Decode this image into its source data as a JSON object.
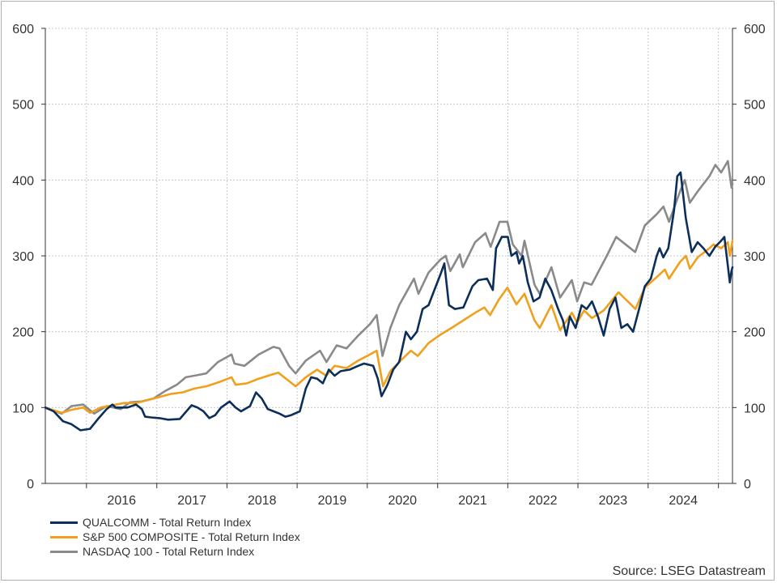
{
  "chart_data": {
    "type": "line",
    "x_axis": {
      "type": "date",
      "range": [
        "2015-06-01",
        "2025-03-15"
      ],
      "tick_labels": [
        "2016",
        "2017",
        "2018",
        "2019",
        "2020",
        "2021",
        "2022",
        "2023",
        "2024"
      ],
      "label_dates": [
        "2016-01-01",
        "2017-01-01",
        "2018-01-01",
        "2019-01-01",
        "2020-01-01",
        "2021-01-01",
        "2022-01-01",
        "2023-01-01",
        "2024-01-01"
      ]
    },
    "y_axis": {
      "range": [
        0,
        600
      ],
      "ticks": [
        "0",
        "100",
        "200",
        "300",
        "400",
        "500",
        "600"
      ],
      "tick_values": [
        0,
        100,
        200,
        300,
        400,
        500,
        600
      ],
      "mirrored_right": true
    },
    "grid": true,
    "legend_placement": "bottom-left",
    "series": [
      {
        "name": "QUALCOMM - Total Return Index",
        "color": "#0b2e5a",
        "points": [
          [
            "2015-06-01",
            100
          ],
          [
            "2015-07-15",
            95
          ],
          [
            "2015-09-01",
            82
          ],
          [
            "2015-10-15",
            78
          ],
          [
            "2015-12-01",
            70
          ],
          [
            "2016-01-20",
            72
          ],
          [
            "2016-03-01",
            85
          ],
          [
            "2016-04-15",
            98
          ],
          [
            "2016-05-15",
            104
          ],
          [
            "2016-06-01",
            100
          ],
          [
            "2016-08-01",
            100
          ],
          [
            "2016-09-15",
            104
          ],
          [
            "2016-10-15",
            98
          ],
          [
            "2016-11-01",
            88
          ],
          [
            "2016-12-01",
            87
          ],
          [
            "2017-01-15",
            86
          ],
          [
            "2017-03-01",
            84
          ],
          [
            "2017-05-01",
            85
          ],
          [
            "2017-07-01",
            103
          ],
          [
            "2017-08-01",
            100
          ],
          [
            "2017-09-01",
            95
          ],
          [
            "2017-10-01",
            86
          ],
          [
            "2017-11-01",
            90
          ],
          [
            "2017-12-01",
            100
          ],
          [
            "2018-01-15",
            108
          ],
          [
            "2018-02-15",
            100
          ],
          [
            "2018-03-15",
            95
          ],
          [
            "2018-05-01",
            102
          ],
          [
            "2018-06-01",
            120
          ],
          [
            "2018-07-01",
            112
          ],
          [
            "2018-08-01",
            98
          ],
          [
            "2018-09-01",
            95
          ],
          [
            "2018-10-01",
            92
          ],
          [
            "2018-11-01",
            88
          ],
          [
            "2018-12-01",
            90
          ],
          [
            "2019-01-15",
            95
          ],
          [
            "2019-02-15",
            125
          ],
          [
            "2019-03-15",
            140
          ],
          [
            "2019-04-15",
            138
          ],
          [
            "2019-05-15",
            132
          ],
          [
            "2019-06-15",
            150
          ],
          [
            "2019-07-15",
            142
          ],
          [
            "2019-08-15",
            148
          ],
          [
            "2019-10-01",
            150
          ],
          [
            "2019-11-15",
            155
          ],
          [
            "2019-12-15",
            158
          ],
          [
            "2020-02-01",
            155
          ],
          [
            "2020-02-25",
            138
          ],
          [
            "2020-03-15",
            115
          ],
          [
            "2020-04-15",
            130
          ],
          [
            "2020-05-15",
            150
          ],
          [
            "2020-06-15",
            160
          ],
          [
            "2020-07-01",
            178
          ],
          [
            "2020-07-20",
            200
          ],
          [
            "2020-08-15",
            190
          ],
          [
            "2020-09-15",
            200
          ],
          [
            "2020-10-15",
            230
          ],
          [
            "2020-11-15",
            235
          ],
          [
            "2020-12-15",
            255
          ],
          [
            "2021-01-15",
            275
          ],
          [
            "2021-02-05",
            290
          ],
          [
            "2021-03-01",
            235
          ],
          [
            "2021-04-01",
            230
          ],
          [
            "2021-05-15",
            232
          ],
          [
            "2021-07-01",
            260
          ],
          [
            "2021-08-01",
            268
          ],
          [
            "2021-09-15",
            270
          ],
          [
            "2021-10-15",
            255
          ],
          [
            "2021-11-01",
            310
          ],
          [
            "2021-12-01",
            325
          ],
          [
            "2022-01-01",
            325
          ],
          [
            "2022-01-20",
            300
          ],
          [
            "2022-02-15",
            305
          ],
          [
            "2022-03-01",
            290
          ],
          [
            "2022-03-20",
            300
          ],
          [
            "2022-04-15",
            265
          ],
          [
            "2022-05-15",
            240
          ],
          [
            "2022-06-15",
            245
          ],
          [
            "2022-07-15",
            270
          ],
          [
            "2022-08-15",
            255
          ],
          [
            "2022-09-20",
            230
          ],
          [
            "2022-10-15",
            215
          ],
          [
            "2022-11-01",
            195
          ],
          [
            "2022-11-20",
            220
          ],
          [
            "2022-12-20",
            205
          ],
          [
            "2023-01-20",
            235
          ],
          [
            "2023-02-15",
            230
          ],
          [
            "2023-03-15",
            240
          ],
          [
            "2023-04-15",
            220
          ],
          [
            "2023-05-15",
            195
          ],
          [
            "2023-06-15",
            230
          ],
          [
            "2023-07-15",
            245
          ],
          [
            "2023-08-15",
            205
          ],
          [
            "2023-09-15",
            210
          ],
          [
            "2023-10-15",
            200
          ],
          [
            "2023-11-15",
            230
          ],
          [
            "2023-12-15",
            260
          ],
          [
            "2024-01-15",
            270
          ],
          [
            "2024-02-15",
            300
          ],
          [
            "2024-03-01",
            310
          ],
          [
            "2024-03-20",
            298
          ],
          [
            "2024-04-15",
            310
          ],
          [
            "2024-05-15",
            360
          ],
          [
            "2024-06-01",
            405
          ],
          [
            "2024-06-18",
            410
          ],
          [
            "2024-07-15",
            350
          ],
          [
            "2024-08-15",
            305
          ],
          [
            "2024-09-15",
            318
          ],
          [
            "2024-10-15",
            310
          ],
          [
            "2024-11-15",
            300
          ],
          [
            "2024-12-15",
            312
          ],
          [
            "2025-01-15",
            320
          ],
          [
            "2025-02-01",
            325
          ],
          [
            "2025-02-20",
            285
          ],
          [
            "2025-03-01",
            265
          ],
          [
            "2025-03-10",
            280
          ],
          [
            "2025-03-15",
            285
          ]
        ]
      },
      {
        "name": "S&P 500 COMPOSITE - Total Return Index",
        "color": "#f0a01c",
        "points": [
          [
            "2015-06-01",
            100
          ],
          [
            "2015-08-25",
            93
          ],
          [
            "2015-10-15",
            97
          ],
          [
            "2015-12-15",
            100
          ],
          [
            "2016-01-20",
            93
          ],
          [
            "2016-03-15",
            100
          ],
          [
            "2016-05-15",
            103
          ],
          [
            "2016-07-15",
            106
          ],
          [
            "2016-09-15",
            106
          ],
          [
            "2016-11-15",
            110
          ],
          [
            "2017-01-15",
            114
          ],
          [
            "2017-03-15",
            118
          ],
          [
            "2017-05-15",
            120
          ],
          [
            "2017-07-15",
            125
          ],
          [
            "2017-09-15",
            128
          ],
          [
            "2017-11-15",
            133
          ],
          [
            "2018-01-25",
            140
          ],
          [
            "2018-02-15",
            130
          ],
          [
            "2018-04-15",
            132
          ],
          [
            "2018-06-15",
            138
          ],
          [
            "2018-08-15",
            143
          ],
          [
            "2018-09-25",
            146
          ],
          [
            "2018-11-15",
            136
          ],
          [
            "2018-12-24",
            128
          ],
          [
            "2019-02-15",
            140
          ],
          [
            "2019-04-15",
            150
          ],
          [
            "2019-06-01",
            142
          ],
          [
            "2019-07-15",
            155
          ],
          [
            "2019-09-15",
            152
          ],
          [
            "2019-11-15",
            162
          ],
          [
            "2020-01-15",
            170
          ],
          [
            "2020-02-19",
            175
          ],
          [
            "2020-03-23",
            128
          ],
          [
            "2020-04-30",
            148
          ],
          [
            "2020-06-15",
            160
          ],
          [
            "2020-08-15",
            175
          ],
          [
            "2020-09-20",
            168
          ],
          [
            "2020-11-15",
            185
          ],
          [
            "2021-01-15",
            196
          ],
          [
            "2021-03-15",
            205
          ],
          [
            "2021-05-15",
            215
          ],
          [
            "2021-07-15",
            225
          ],
          [
            "2021-09-01",
            232
          ],
          [
            "2021-10-01",
            222
          ],
          [
            "2021-11-15",
            242
          ],
          [
            "2021-12-30",
            258
          ],
          [
            "2022-02-15",
            236
          ],
          [
            "2022-03-29",
            250
          ],
          [
            "2022-05-20",
            215
          ],
          [
            "2022-06-16",
            205
          ],
          [
            "2022-08-16",
            235
          ],
          [
            "2022-09-30",
            202
          ],
          [
            "2022-11-30",
            225
          ],
          [
            "2022-12-28",
            212
          ],
          [
            "2023-02-02",
            228
          ],
          [
            "2023-03-15",
            218
          ],
          [
            "2023-05-15",
            228
          ],
          [
            "2023-07-31",
            252
          ],
          [
            "2023-10-27",
            230
          ],
          [
            "2023-12-15",
            258
          ],
          [
            "2024-02-15",
            272
          ],
          [
            "2024-03-28",
            282
          ],
          [
            "2024-04-19",
            270
          ],
          [
            "2024-06-15",
            292
          ],
          [
            "2024-07-16",
            300
          ],
          [
            "2024-08-05",
            283
          ],
          [
            "2024-09-15",
            298
          ],
          [
            "2024-11-15",
            310
          ],
          [
            "2024-12-06",
            315
          ],
          [
            "2025-01-15",
            310
          ],
          [
            "2025-02-19",
            318
          ],
          [
            "2025-03-01",
            300
          ],
          [
            "2025-03-15",
            320
          ]
        ]
      },
      {
        "name": "NASDAQ 100 - Total Return Index",
        "color": "#8a8a8a",
        "points": [
          [
            "2015-06-01",
            100
          ],
          [
            "2015-08-25",
            92
          ],
          [
            "2015-10-15",
            102
          ],
          [
            "2015-12-15",
            104
          ],
          [
            "2016-02-10",
            92
          ],
          [
            "2016-04-15",
            102
          ],
          [
            "2016-06-27",
            98
          ],
          [
            "2016-08-15",
            107
          ],
          [
            "2016-10-15",
            108
          ],
          [
            "2016-12-15",
            112
          ],
          [
            "2017-02-15",
            122
          ],
          [
            "2017-04-15",
            130
          ],
          [
            "2017-06-01",
            140
          ],
          [
            "2017-07-15",
            142
          ],
          [
            "2017-09-15",
            145
          ],
          [
            "2017-11-15",
            160
          ],
          [
            "2018-01-25",
            170
          ],
          [
            "2018-02-09",
            158
          ],
          [
            "2018-04-02",
            155
          ],
          [
            "2018-06-15",
            170
          ],
          [
            "2018-08-30",
            180
          ],
          [
            "2018-10-01",
            178
          ],
          [
            "2018-11-20",
            155
          ],
          [
            "2018-12-24",
            145
          ],
          [
            "2019-02-15",
            162
          ],
          [
            "2019-04-30",
            175
          ],
          [
            "2019-06-03",
            160
          ],
          [
            "2019-07-26",
            182
          ],
          [
            "2019-09-15",
            178
          ],
          [
            "2019-11-15",
            195
          ],
          [
            "2020-01-15",
            210
          ],
          [
            "2020-02-19",
            222
          ],
          [
            "2020-03-20",
            168
          ],
          [
            "2020-04-30",
            205
          ],
          [
            "2020-06-15",
            235
          ],
          [
            "2020-08-31",
            270
          ],
          [
            "2020-09-23",
            250
          ],
          [
            "2020-11-15",
            278
          ],
          [
            "2021-01-15",
            295
          ],
          [
            "2021-02-12",
            300
          ],
          [
            "2021-03-08",
            280
          ],
          [
            "2021-04-26",
            302
          ],
          [
            "2021-05-12",
            285
          ],
          [
            "2021-07-15",
            318
          ],
          [
            "2021-09-07",
            330
          ],
          [
            "2021-10-04",
            312
          ],
          [
            "2021-11-19",
            345
          ],
          [
            "2021-12-30",
            345
          ],
          [
            "2022-01-27",
            315
          ],
          [
            "2022-03-14",
            300
          ],
          [
            "2022-03-29",
            320
          ],
          [
            "2022-05-20",
            262
          ],
          [
            "2022-06-16",
            250
          ],
          [
            "2022-08-16",
            285
          ],
          [
            "2022-09-30",
            245
          ],
          [
            "2022-11-30",
            268
          ],
          [
            "2022-12-28",
            240
          ],
          [
            "2023-02-02",
            265
          ],
          [
            "2023-03-13",
            262
          ],
          [
            "2023-05-31",
            300
          ],
          [
            "2023-07-19",
            325
          ],
          [
            "2023-10-26",
            305
          ],
          [
            "2023-12-15",
            340
          ],
          [
            "2024-02-15",
            355
          ],
          [
            "2024-03-21",
            365
          ],
          [
            "2024-04-19",
            345
          ],
          [
            "2024-06-15",
            385
          ],
          [
            "2024-07-10",
            400
          ],
          [
            "2024-08-05",
            370
          ],
          [
            "2024-09-15",
            385
          ],
          [
            "2024-11-15",
            405
          ],
          [
            "2024-12-16",
            420
          ],
          [
            "2025-01-15",
            410
          ],
          [
            "2025-02-19",
            425
          ],
          [
            "2025-03-10",
            390
          ],
          [
            "2025-03-15",
            395
          ]
        ]
      }
    ],
    "source": "Source: LSEG Datastream"
  }
}
